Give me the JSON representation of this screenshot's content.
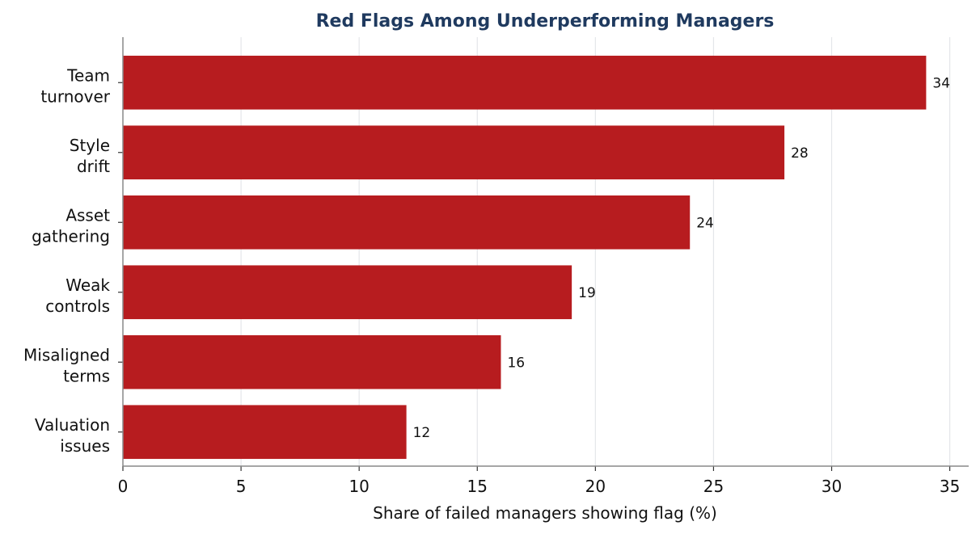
{
  "chart_data": {
    "type": "bar",
    "orientation": "horizontal",
    "title": "Red Flags Among Underperforming Managers",
    "xlabel": "Share of failed managers showing flag (%)",
    "ylabel": "",
    "categories": [
      [
        "Team",
        "turnover"
      ],
      [
        "Style",
        "drift"
      ],
      [
        "Asset",
        "gathering"
      ],
      [
        "Weak",
        "controls"
      ],
      [
        "Misaligned",
        "terms"
      ],
      [
        "Valuation",
        "issues"
      ]
    ],
    "values": [
      34,
      28,
      24,
      19,
      16,
      12
    ],
    "xlim": [
      0,
      35.8
    ],
    "xticks": [
      0,
      5,
      10,
      15,
      20,
      25,
      30,
      35
    ],
    "grid": "vertical",
    "bar_color": "#b71c1f"
  }
}
